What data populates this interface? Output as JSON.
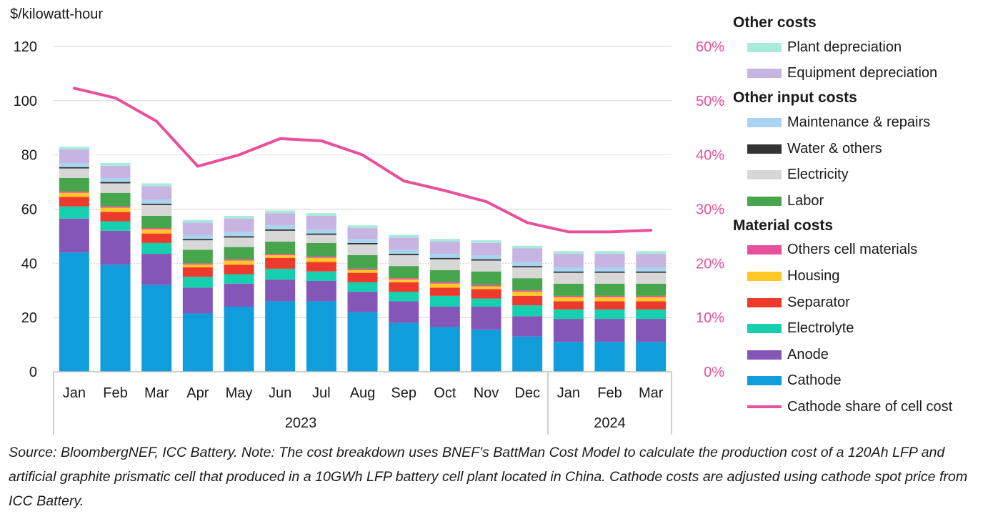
{
  "chart_data": {
    "type": "bar",
    "stacked": true,
    "ylabel": "$/kilowatt-hour",
    "ylim": [
      0,
      120
    ],
    "yticks": [
      0,
      20,
      40,
      60,
      80,
      100,
      120
    ],
    "y2lim": [
      0,
      60
    ],
    "y2ticks": [
      "0%",
      "10%",
      "20%",
      "30%",
      "40%",
      "50%",
      "60%"
    ],
    "categories": [
      "Jan",
      "Feb",
      "Mar",
      "Apr",
      "May",
      "Jun",
      "Jul",
      "Aug",
      "Sep",
      "Oct",
      "Nov",
      "Dec",
      "Jan",
      "Feb",
      "Mar"
    ],
    "groups": [
      {
        "label": "2023",
        "count": 12
      },
      {
        "label": "2024",
        "count": 3
      }
    ],
    "series": [
      {
        "name": "Cathode",
        "color": "#109ddc",
        "values": [
          44,
          39.5,
          32,
          21.5,
          24,
          26,
          26,
          22,
          18,
          16.5,
          15.5,
          13,
          11,
          11,
          11
        ]
      },
      {
        "name": "Anode",
        "color": "#8456b8",
        "values": [
          12.5,
          12.5,
          11.5,
          9.5,
          8.5,
          8,
          7.5,
          7.5,
          8,
          7.5,
          8.5,
          7.5,
          8.5,
          8.5,
          8.5
        ]
      },
      {
        "name": "Electrolyte",
        "color": "#16cfae",
        "values": [
          4.5,
          3.5,
          4,
          4,
          3.5,
          4,
          3.5,
          3.5,
          3.5,
          4,
          3,
          4,
          3.5,
          3.5,
          3.5
        ]
      },
      {
        "name": "Separator",
        "color": "#ee3a2c",
        "values": [
          3.5,
          3.5,
          3.5,
          3.5,
          3.5,
          4,
          3.5,
          3.5,
          3.5,
          3,
          3.5,
          3.5,
          3,
          3,
          3
        ]
      },
      {
        "name": "Housing",
        "color": "#ffc824",
        "values": [
          1.5,
          1.5,
          1.5,
          1,
          1.5,
          1,
          1.5,
          1,
          1,
          1.5,
          1,
          1.5,
          1.5,
          1.5,
          1.5
        ]
      },
      {
        "name": "Others cell materials",
        "color": "#e8509b",
        "values": [
          0.5,
          0.5,
          0.5,
          0.5,
          0.5,
          0.5,
          0.5,
          0.5,
          0.5,
          0.5,
          0.5,
          0.5,
          0.5,
          0.5,
          0.5
        ]
      },
      {
        "name": "Labor",
        "color": "#47a54c",
        "values": [
          5,
          5,
          4.5,
          5,
          4.5,
          4.5,
          5,
          5,
          4.5,
          4.5,
          5,
          4.5,
          4.5,
          4.5,
          4.5
        ]
      },
      {
        "name": "Electricity",
        "color": "#d7d7d7",
        "values": [
          3.5,
          3.5,
          4,
          3.5,
          3.5,
          4,
          3,
          4,
          4,
          4,
          4,
          4,
          4,
          4,
          4
        ]
      },
      {
        "name": "Water & others",
        "color": "#333333",
        "values": [
          0.5,
          0.5,
          0.5,
          0.5,
          0.5,
          0.5,
          0.5,
          0.5,
          0.5,
          0.5,
          0.5,
          0.5,
          0.5,
          0.5,
          0.5
        ]
      },
      {
        "name": "Maintenance & repairs",
        "color": "#a8d4f0",
        "values": [
          1.5,
          1.5,
          1.5,
          1.5,
          1.5,
          1.5,
          1.5,
          1.5,
          1.5,
          1.5,
          1.5,
          1.5,
          1.5,
          1.5,
          1.5
        ]
      },
      {
        "name": "Equipment depreciation",
        "color": "#c8b4e2",
        "values": [
          5,
          4.5,
          5,
          4.5,
          5,
          4.5,
          5,
          4,
          4.5,
          4.5,
          4.5,
          5,
          5,
          5,
          5
        ]
      },
      {
        "name": "Plant depreciation",
        "color": "#a8eadb",
        "values": [
          1,
          1,
          1,
          1,
          1,
          1,
          1,
          1,
          1,
          1,
          1,
          1,
          1,
          1,
          1
        ]
      }
    ],
    "line_series": {
      "name": "Cathode share of cell cost",
      "color": "#e8509b",
      "axis": "right",
      "values": [
        52.3,
        50.5,
        46.2,
        37.9,
        40,
        43,
        42.6,
        40,
        35.2,
        33.4,
        31.4,
        27.5,
        25.8,
        25.8,
        26.1
      ]
    }
  },
  "legend": {
    "groups": [
      {
        "title": "Other costs",
        "items": [
          {
            "label": "Plant depreciation",
            "color": "#a8eadb",
            "kind": "swatch"
          },
          {
            "label": "Equipment depreciation",
            "color": "#c8b4e2",
            "kind": "swatch"
          }
        ]
      },
      {
        "title": "Other input costs",
        "items": [
          {
            "label": "Maintenance & repairs",
            "color": "#a8d4f0",
            "kind": "swatch"
          },
          {
            "label": "Water & others",
            "color": "#333333",
            "kind": "swatch"
          },
          {
            "label": "Electricity",
            "color": "#d7d7d7",
            "kind": "swatch"
          },
          {
            "label": "Labor",
            "color": "#47a54c",
            "kind": "swatch"
          }
        ]
      },
      {
        "title": "Material costs",
        "items": [
          {
            "label": "Others cell materials",
            "color": "#e8509b",
            "kind": "swatch"
          },
          {
            "label": "Housing",
            "color": "#ffc824",
            "kind": "swatch"
          },
          {
            "label": "Separator",
            "color": "#ee3a2c",
            "kind": "swatch"
          },
          {
            "label": "Electrolyte",
            "color": "#16cfae",
            "kind": "swatch"
          },
          {
            "label": "Anode",
            "color": "#8456b8",
            "kind": "swatch"
          },
          {
            "label": "Cathode",
            "color": "#109ddc",
            "kind": "swatch"
          },
          {
            "label": "Cathode share of cell cost",
            "color": "#e8509b",
            "kind": "line"
          }
        ]
      }
    ]
  },
  "source_note": "Source: BloombergNEF, ICC Battery. Note: The cost breakdown uses BNEF's BattMan Cost Model to calculate the production cost of a 120Ah LFP and artificial graphite prismatic cell that produced in a 10GWh LFP battery cell plant located in China. Cathode costs are adjusted using cathode spot price from ICC Battery."
}
